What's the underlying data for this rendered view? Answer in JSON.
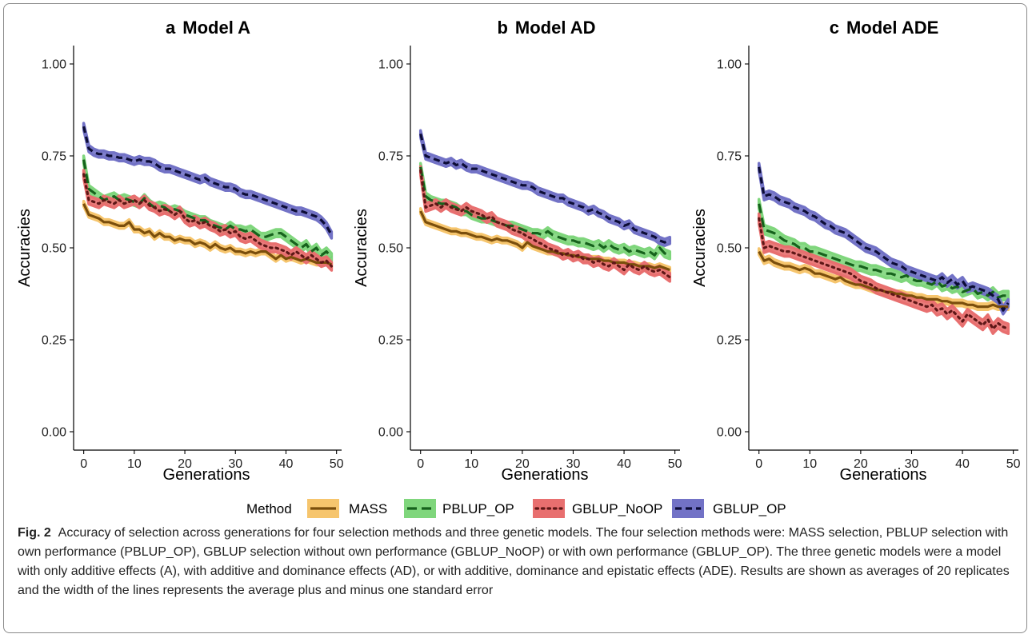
{
  "legend": {
    "title": "Method",
    "items": [
      {
        "label": "MASS",
        "color": "#7a4e0c",
        "band": "#f6c56d",
        "dash": "solid"
      },
      {
        "label": "PBLUP_OP",
        "color": "#16621c",
        "band": "#7fd67c",
        "dash": "longdash"
      },
      {
        "label": "GBLUP_NoOP",
        "color": "#5e1616",
        "band": "#e86f6f",
        "dash": "dotted"
      },
      {
        "label": "GBLUP_OP",
        "color": "#0c0c36",
        "band": "#7272c6",
        "dash": "dashed"
      }
    ]
  },
  "caption": {
    "label": "Fig. 2",
    "text": "Accuracy of selection across generations for four selection methods and three genetic models. The four selection methods were: MASS selection, PBLUP selection with own performance (PBLUP_OP), GBLUP selection without own performance (GBLUP_NoOP) or with own performance (GBLUP_OP). The three genetic models were a model with only additive effects (A), with additive and dominance effects (AD), or with additive, dominance and epistatic effects (ADE). Results are shown as averages of 20 replicates and the width of the lines represents the average plus and minus one standard error"
  },
  "chart_data": [
    {
      "type": "line",
      "panel": "a",
      "title": "Model A",
      "xlabel": "Generations",
      "ylabel": "Accuracies",
      "xlim": [
        -2,
        51
      ],
      "ylim": [
        -0.05,
        1.05
      ],
      "xticks": [
        0,
        10,
        20,
        30,
        40,
        50
      ],
      "yticks": [
        "0.00",
        "0.25",
        "0.50",
        "0.75",
        "1.00"
      ],
      "grid": false,
      "x": [
        0,
        1,
        2,
        3,
        4,
        5,
        6,
        7,
        8,
        9,
        10,
        11,
        12,
        13,
        14,
        15,
        16,
        17,
        18,
        19,
        20,
        21,
        22,
        23,
        24,
        25,
        26,
        27,
        28,
        29,
        30,
        31,
        32,
        33,
        34,
        35,
        36,
        37,
        38,
        39,
        40,
        41,
        42,
        43,
        44,
        45,
        46,
        47,
        48,
        49
      ],
      "series": [
        {
          "name": "MASS",
          "se": 0.007,
          "values": [
            0.62,
            0.59,
            0.585,
            0.58,
            0.57,
            0.57,
            0.565,
            0.56,
            0.56,
            0.57,
            0.55,
            0.55,
            0.54,
            0.545,
            0.53,
            0.54,
            0.53,
            0.53,
            0.52,
            0.525,
            0.52,
            0.52,
            0.51,
            0.515,
            0.51,
            0.5,
            0.51,
            0.5,
            0.495,
            0.5,
            0.49,
            0.49,
            0.485,
            0.49,
            0.485,
            0.49,
            0.49,
            0.48,
            0.47,
            0.48,
            0.47,
            0.475,
            0.47,
            0.465,
            0.47,
            0.465,
            0.46,
            0.46,
            0.46,
            0.455
          ]
        },
        {
          "name": "PBLUP_OP",
          "se": 0.01,
          "values": [
            0.74,
            0.66,
            0.65,
            0.64,
            0.63,
            0.635,
            0.64,
            0.63,
            0.635,
            0.63,
            0.625,
            0.62,
            0.635,
            0.62,
            0.61,
            0.615,
            0.61,
            0.6,
            0.605,
            0.6,
            0.59,
            0.585,
            0.58,
            0.575,
            0.575,
            0.565,
            0.56,
            0.555,
            0.55,
            0.56,
            0.55,
            0.55,
            0.545,
            0.55,
            0.54,
            0.53,
            0.53,
            0.535,
            0.54,
            0.54,
            0.53,
            0.52,
            0.51,
            0.5,
            0.51,
            0.49,
            0.5,
            0.48,
            0.49,
            0.475
          ]
        },
        {
          "name": "GBLUP_NoOP",
          "se": 0.011,
          "values": [
            0.7,
            0.63,
            0.625,
            0.62,
            0.63,
            0.625,
            0.62,
            0.63,
            0.62,
            0.625,
            0.63,
            0.62,
            0.63,
            0.615,
            0.61,
            0.6,
            0.605,
            0.6,
            0.59,
            0.6,
            0.58,
            0.57,
            0.575,
            0.565,
            0.57,
            0.56,
            0.555,
            0.545,
            0.55,
            0.54,
            0.545,
            0.53,
            0.525,
            0.53,
            0.52,
            0.51,
            0.505,
            0.5,
            0.5,
            0.495,
            0.49,
            0.48,
            0.49,
            0.48,
            0.47,
            0.48,
            0.47,
            0.46,
            0.465,
            0.45
          ]
        },
        {
          "name": "GBLUP_OP",
          "se": 0.009,
          "values": [
            0.83,
            0.77,
            0.76,
            0.755,
            0.755,
            0.75,
            0.75,
            0.745,
            0.745,
            0.74,
            0.735,
            0.74,
            0.735,
            0.735,
            0.73,
            0.72,
            0.715,
            0.715,
            0.71,
            0.705,
            0.7,
            0.695,
            0.69,
            0.685,
            0.69,
            0.68,
            0.675,
            0.67,
            0.665,
            0.665,
            0.66,
            0.65,
            0.645,
            0.645,
            0.64,
            0.635,
            0.63,
            0.625,
            0.62,
            0.615,
            0.61,
            0.605,
            0.6,
            0.6,
            0.595,
            0.59,
            0.585,
            0.575,
            0.56,
            0.535
          ]
        }
      ]
    },
    {
      "type": "line",
      "panel": "b",
      "title": "Model AD",
      "xlabel": "Generations",
      "ylabel": "Accuracies",
      "xlim": [
        -2,
        51
      ],
      "ylim": [
        -0.05,
        1.05
      ],
      "xticks": [
        0,
        10,
        20,
        30,
        40,
        50
      ],
      "yticks": [
        "0.00",
        "0.25",
        "0.50",
        "0.75",
        "1.00"
      ],
      "grid": false,
      "x": [
        0,
        1,
        2,
        3,
        4,
        5,
        6,
        7,
        8,
        9,
        10,
        11,
        12,
        13,
        14,
        15,
        16,
        17,
        18,
        19,
        20,
        21,
        22,
        23,
        24,
        25,
        26,
        27,
        28,
        29,
        30,
        31,
        32,
        33,
        34,
        35,
        36,
        37,
        38,
        39,
        40,
        41,
        42,
        43,
        44,
        45,
        46,
        47,
        48,
        49
      ],
      "series": [
        {
          "name": "MASS",
          "se": 0.007,
          "values": [
            0.6,
            0.57,
            0.565,
            0.56,
            0.555,
            0.55,
            0.545,
            0.545,
            0.54,
            0.54,
            0.535,
            0.53,
            0.53,
            0.525,
            0.52,
            0.525,
            0.52,
            0.52,
            0.515,
            0.51,
            0.5,
            0.515,
            0.505,
            0.5,
            0.495,
            0.49,
            0.49,
            0.485,
            0.485,
            0.48,
            0.48,
            0.475,
            0.475,
            0.47,
            0.47,
            0.47,
            0.465,
            0.465,
            0.46,
            0.46,
            0.46,
            0.455,
            0.455,
            0.45,
            0.45,
            0.45,
            0.445,
            0.45,
            0.445,
            0.44
          ]
        },
        {
          "name": "PBLUP_OP",
          "se": 0.01,
          "values": [
            0.72,
            0.64,
            0.63,
            0.625,
            0.62,
            0.62,
            0.615,
            0.61,
            0.6,
            0.6,
            0.59,
            0.585,
            0.58,
            0.58,
            0.575,
            0.57,
            0.565,
            0.56,
            0.56,
            0.555,
            0.55,
            0.545,
            0.54,
            0.54,
            0.535,
            0.545,
            0.535,
            0.53,
            0.525,
            0.52,
            0.52,
            0.515,
            0.515,
            0.51,
            0.505,
            0.51,
            0.5,
            0.51,
            0.5,
            0.495,
            0.5,
            0.49,
            0.495,
            0.49,
            0.485,
            0.49,
            0.48,
            0.5,
            0.485,
            0.48
          ]
        },
        {
          "name": "GBLUP_NoOP",
          "se": 0.011,
          "values": [
            0.71,
            0.61,
            0.615,
            0.62,
            0.61,
            0.62,
            0.61,
            0.605,
            0.6,
            0.61,
            0.6,
            0.595,
            0.59,
            0.58,
            0.585,
            0.57,
            0.565,
            0.56,
            0.55,
            0.545,
            0.54,
            0.53,
            0.525,
            0.515,
            0.51,
            0.5,
            0.495,
            0.49,
            0.48,
            0.485,
            0.475,
            0.48,
            0.47,
            0.47,
            0.46,
            0.465,
            0.455,
            0.45,
            0.46,
            0.45,
            0.44,
            0.455,
            0.445,
            0.44,
            0.45,
            0.44,
            0.435,
            0.44,
            0.43,
            0.42
          ]
        },
        {
          "name": "GBLUP_OP",
          "se": 0.009,
          "values": [
            0.81,
            0.75,
            0.745,
            0.74,
            0.735,
            0.73,
            0.735,
            0.725,
            0.73,
            0.72,
            0.715,
            0.715,
            0.71,
            0.705,
            0.7,
            0.695,
            0.69,
            0.685,
            0.68,
            0.675,
            0.67,
            0.67,
            0.665,
            0.655,
            0.65,
            0.645,
            0.64,
            0.635,
            0.635,
            0.625,
            0.62,
            0.615,
            0.61,
            0.6,
            0.605,
            0.595,
            0.59,
            0.58,
            0.575,
            0.57,
            0.56,
            0.565,
            0.55,
            0.545,
            0.54,
            0.535,
            0.53,
            0.52,
            0.515,
            0.52
          ]
        }
      ]
    },
    {
      "type": "line",
      "panel": "c",
      "title": "Model ADE",
      "xlabel": "Generations",
      "ylabel": "Accuracies",
      "xlim": [
        -2,
        51
      ],
      "ylim": [
        -0.05,
        1.05
      ],
      "xticks": [
        0,
        10,
        20,
        30,
        40,
        50
      ],
      "yticks": [
        "0.00",
        "0.25",
        "0.50",
        "0.75",
        "1.00"
      ],
      "grid": false,
      "x": [
        0,
        1,
        2,
        3,
        4,
        5,
        6,
        7,
        8,
        9,
        10,
        11,
        12,
        13,
        14,
        15,
        16,
        17,
        18,
        19,
        20,
        21,
        22,
        23,
        24,
        25,
        26,
        27,
        28,
        29,
        30,
        31,
        32,
        33,
        34,
        35,
        36,
        37,
        38,
        39,
        40,
        41,
        42,
        43,
        44,
        45,
        46,
        47,
        48,
        49
      ],
      "series": [
        {
          "name": "MASS",
          "se": 0.008,
          "values": [
            0.49,
            0.465,
            0.47,
            0.46,
            0.455,
            0.45,
            0.45,
            0.445,
            0.44,
            0.445,
            0.44,
            0.43,
            0.43,
            0.425,
            0.42,
            0.415,
            0.42,
            0.41,
            0.405,
            0.4,
            0.4,
            0.395,
            0.39,
            0.385,
            0.385,
            0.38,
            0.38,
            0.375,
            0.375,
            0.37,
            0.37,
            0.365,
            0.365,
            0.36,
            0.36,
            0.36,
            0.355,
            0.355,
            0.35,
            0.35,
            0.35,
            0.345,
            0.345,
            0.34,
            0.34,
            0.34,
            0.345,
            0.34,
            0.34,
            0.34
          ]
        },
        {
          "name": "PBLUP_OP",
          "se": 0.012,
          "values": [
            0.62,
            0.55,
            0.545,
            0.54,
            0.53,
            0.52,
            0.515,
            0.51,
            0.5,
            0.5,
            0.49,
            0.49,
            0.485,
            0.48,
            0.475,
            0.47,
            0.465,
            0.46,
            0.455,
            0.45,
            0.45,
            0.445,
            0.44,
            0.44,
            0.435,
            0.43,
            0.43,
            0.425,
            0.42,
            0.425,
            0.415,
            0.41,
            0.41,
            0.405,
            0.4,
            0.41,
            0.395,
            0.4,
            0.39,
            0.395,
            0.38,
            0.385,
            0.39,
            0.375,
            0.38,
            0.37,
            0.38,
            0.365,
            0.37,
            0.37
          ]
        },
        {
          "name": "GBLUP_NoOP",
          "se": 0.013,
          "values": [
            0.58,
            0.5,
            0.505,
            0.5,
            0.495,
            0.49,
            0.49,
            0.485,
            0.48,
            0.475,
            0.47,
            0.465,
            0.46,
            0.455,
            0.45,
            0.445,
            0.44,
            0.435,
            0.43,
            0.42,
            0.41,
            0.405,
            0.4,
            0.39,
            0.385,
            0.38,
            0.375,
            0.37,
            0.365,
            0.36,
            0.355,
            0.35,
            0.345,
            0.34,
            0.345,
            0.33,
            0.335,
            0.32,
            0.33,
            0.315,
            0.3,
            0.32,
            0.31,
            0.3,
            0.29,
            0.305,
            0.28,
            0.295,
            0.285,
            0.28
          ]
        },
        {
          "name": "GBLUP_OP",
          "se": 0.01,
          "values": [
            0.72,
            0.64,
            0.645,
            0.64,
            0.63,
            0.625,
            0.62,
            0.61,
            0.605,
            0.6,
            0.59,
            0.585,
            0.575,
            0.565,
            0.56,
            0.55,
            0.545,
            0.54,
            0.53,
            0.52,
            0.51,
            0.5,
            0.495,
            0.49,
            0.48,
            0.47,
            0.46,
            0.455,
            0.45,
            0.44,
            0.435,
            0.43,
            0.425,
            0.42,
            0.415,
            0.41,
            0.42,
            0.405,
            0.415,
            0.4,
            0.41,
            0.39,
            0.395,
            0.39,
            0.385,
            0.38,
            0.37,
            0.36,
            0.33,
            0.35
          ]
        }
      ]
    }
  ]
}
